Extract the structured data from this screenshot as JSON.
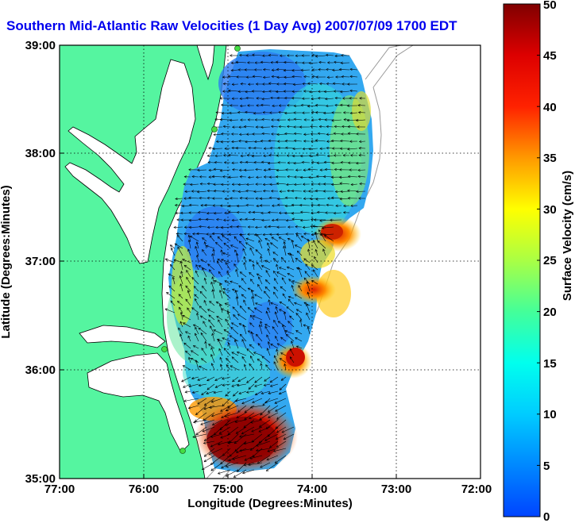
{
  "title": "Southern Mid-Atlantic Raw Velocities (1 Day Avg) 2007/07/09 1700 EDT",
  "x_axis": {
    "label": "Longitude (Degrees:Minutes)",
    "ticks": [
      "77:00",
      "76:00",
      "75:00",
      "74:00",
      "73:00",
      "72:00"
    ]
  },
  "y_axis": {
    "label": "Latitude (Degrees:Minutes)",
    "ticks": [
      "39:00",
      "38:00",
      "37:00",
      "36:00",
      "35:00"
    ]
  },
  "colorbar": {
    "label": "Surface Velocity (cm/s)",
    "ticks": [
      "50",
      "45",
      "40",
      "35",
      "30",
      "25",
      "20",
      "15",
      "10",
      "5",
      "0"
    ],
    "range": [
      0,
      50
    ]
  },
  "colors": {
    "land": "#55f5a0",
    "water": "#ffffff",
    "coastline": "#000000",
    "bathymetry": "#999999",
    "title": "#0000ee",
    "site_marker": "#44dd44"
  },
  "map": {
    "extent_lon_w": [
      -77,
      -72
    ],
    "extent_lat_n": [
      35,
      39
    ],
    "grid": true,
    "station_markers": 5
  }
}
